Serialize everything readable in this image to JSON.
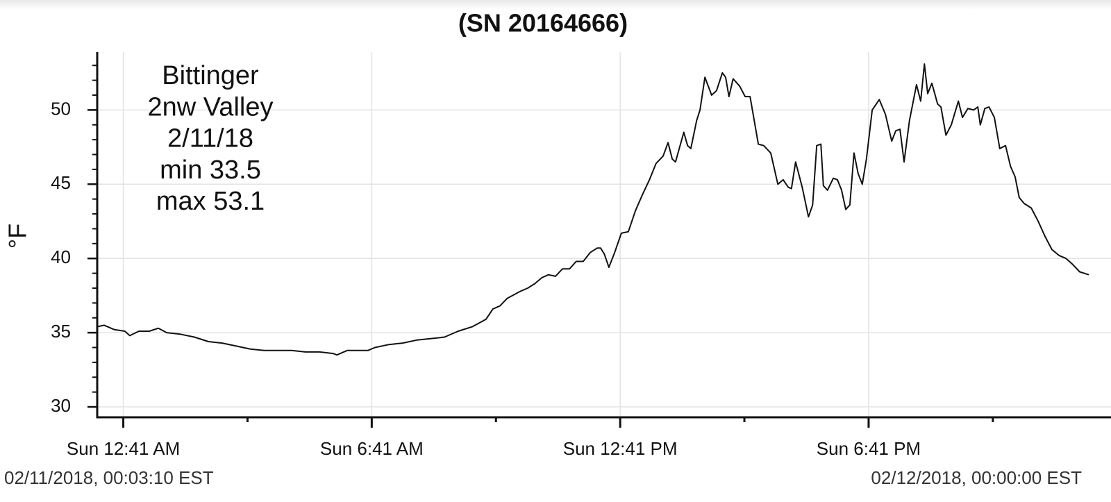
{
  "chart_data": {
    "type": "line",
    "title": "(SN 20164666)",
    "y_label": "°F",
    "annotations": [
      "Bittinger",
      "2nw Valley",
      "2/11/18",
      "min 33.5",
      "max 53.1"
    ],
    "start_label": "02/11/2018, 00:03:10 EST",
    "end_label": "02/12/2018, 00:00:00 EST",
    "color": "#111111",
    "grid": true,
    "xlim": [
      0.053,
      24
    ],
    "ylim": [
      29.3,
      53.9
    ],
    "xticks": [
      {
        "value": 0.683,
        "label": "Sun 12:41 AM"
      },
      {
        "value": 6.683,
        "label": "Sun 6:41 AM"
      },
      {
        "value": 12.683,
        "label": "Sun 12:41 PM"
      },
      {
        "value": 18.683,
        "label": "Sun 6:41 PM"
      }
    ],
    "xminorticks": [
      3.683,
      9.683,
      15.683,
      21.683
    ],
    "yticks": [
      30,
      35,
      40,
      45,
      50
    ],
    "yminorticks": [
      30,
      31,
      32,
      33,
      34,
      35,
      36,
      37,
      38,
      39,
      40,
      41,
      42,
      43,
      44,
      45,
      46,
      47,
      48,
      49,
      50,
      51,
      52,
      53
    ],
    "x": [
      0.05,
      0.22,
      0.47,
      0.72,
      0.84,
      1.06,
      1.31,
      1.53,
      1.73,
      2.06,
      2.4,
      2.74,
      3.07,
      3.41,
      3.74,
      4.08,
      4.41,
      4.75,
      5.08,
      5.42,
      5.75,
      5.84,
      6.09,
      6.43,
      6.59,
      6.76,
      7.1,
      7.43,
      7.77,
      8.1,
      8.44,
      8.77,
      9.11,
      9.44,
      9.61,
      9.78,
      9.95,
      10.28,
      10.45,
      10.62,
      10.79,
      10.95,
      11.12,
      11.29,
      11.46,
      11.62,
      11.79,
      11.96,
      12.13,
      12.21,
      12.3,
      12.41,
      12.55,
      12.71,
      12.88,
      13.05,
      13.22,
      13.39,
      13.55,
      13.72,
      13.84,
      13.94,
      14.02,
      14.11,
      14.22,
      14.31,
      14.39,
      14.53,
      14.61,
      14.73,
      14.89,
      15.01,
      15.15,
      15.23,
      15.31,
      15.41,
      15.57,
      15.7,
      15.82,
      16.02,
      16.15,
      16.32,
      16.49,
      16.62,
      16.74,
      16.82,
      16.92,
      17.08,
      17.23,
      17.33,
      17.43,
      17.53,
      17.59,
      17.69,
      17.83,
      17.93,
      18.03,
      18.13,
      18.23,
      18.33,
      18.43,
      18.53,
      18.63,
      18.77,
      18.94,
      19.09,
      19.24,
      19.34,
      19.44,
      19.54,
      19.67,
      19.84,
      19.94,
      20.03,
      20.11,
      20.21,
      20.35,
      20.43,
      20.55,
      20.68,
      20.85,
      20.95,
      21.08,
      21.22,
      21.32,
      21.38,
      21.49,
      21.59,
      21.72,
      21.85,
      21.99,
      22.11,
      22.22,
      22.32,
      22.44,
      22.61,
      22.78,
      22.94,
      23.11,
      23.28,
      23.45,
      23.61,
      23.78,
      24.0
    ],
    "values": [
      35.4,
      35.5,
      35.2,
      35.1,
      34.8,
      35.1,
      35.1,
      35.3,
      35.0,
      34.9,
      34.7,
      34.4,
      34.3,
      34.1,
      33.9,
      33.8,
      33.8,
      33.8,
      33.7,
      33.7,
      33.6,
      33.5,
      33.8,
      33.8,
      33.8,
      34.0,
      34.2,
      34.3,
      34.5,
      34.6,
      34.7,
      35.1,
      35.4,
      35.9,
      36.6,
      36.8,
      37.3,
      37.8,
      38.0,
      38.3,
      38.7,
      38.9,
      38.8,
      39.3,
      39.3,
      39.8,
      39.8,
      40.4,
      40.7,
      40.7,
      40.3,
      39.4,
      40.4,
      41.7,
      41.8,
      43.2,
      44.3,
      45.3,
      46.4,
      46.9,
      47.8,
      46.7,
      46.5,
      47.4,
      48.5,
      47.6,
      47.4,
      49.3,
      50.0,
      52.2,
      51.0,
      51.3,
      52.5,
      52.2,
      50.9,
      52.1,
      51.6,
      50.9,
      50.9,
      47.7,
      47.6,
      47.1,
      45.0,
      45.3,
      44.8,
      44.7,
      46.5,
      44.8,
      42.8,
      43.6,
      47.6,
      47.7,
      44.9,
      44.6,
      45.4,
      45.3,
      44.6,
      43.3,
      43.6,
      47.1,
      45.7,
      45.0,
      46.7,
      50.0,
      50.7,
      49.7,
      47.9,
      48.6,
      48.7,
      46.5,
      49.3,
      51.7,
      50.6,
      53.1,
      51.1,
      51.8,
      50.4,
      50.2,
      48.3,
      49.0,
      50.6,
      49.5,
      50.1,
      50.0,
      50.2,
      49.0,
      50.1,
      50.2,
      49.5,
      47.4,
      47.6,
      46.2,
      45.5,
      44.1,
      43.7,
      43.4,
      42.5,
      41.5,
      40.6,
      40.2,
      40.0,
      39.6,
      39.1,
      38.9
    ]
  }
}
